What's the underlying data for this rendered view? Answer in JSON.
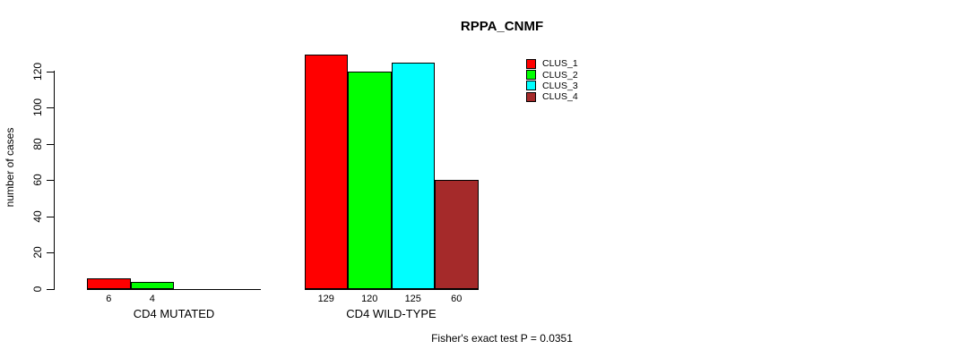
{
  "chart_data": {
    "type": "bar",
    "title": "RPPA_CNMF",
    "ylabel": "number of cases",
    "xlabel": "",
    "ylim": [
      0,
      120
    ],
    "yticks": [
      0,
      20,
      40,
      60,
      80,
      100,
      120
    ],
    "categories": [
      "CD4 MUTATED",
      "CD4 WILD-TYPE"
    ],
    "series": [
      {
        "name": "CLUS_1",
        "color": "#ff0000",
        "values": [
          6,
          129
        ]
      },
      {
        "name": "CLUS_2",
        "color": "#00ff00",
        "values": [
          4,
          120
        ]
      },
      {
        "name": "CLUS_3",
        "color": "#00ffff",
        "values": [
          0,
          125
        ]
      },
      {
        "name": "CLUS_4",
        "color": "#a52a2a",
        "values": [
          0,
          60
        ]
      }
    ],
    "bar_value_labels_shown": [
      "6",
      "4",
      "129",
      "120",
      "125",
      "60"
    ],
    "legend_position": "top-right",
    "legend_entries": [
      "CLUS_1",
      "CLUS_2",
      "CLUS_3",
      "CLUS_4"
    ],
    "grid": false,
    "caption": "Fisher's exact test P = 0.0351",
    "colors": {
      "background": "#ffffff",
      "axis": "#000000",
      "bar_border": "#000000",
      "text": "#000000"
    }
  }
}
